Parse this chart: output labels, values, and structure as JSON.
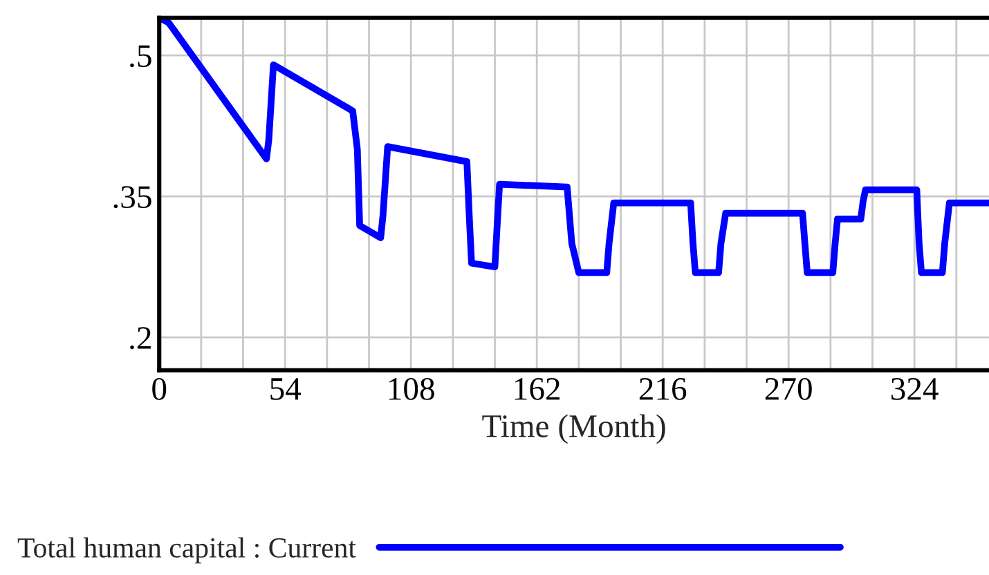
{
  "chart_data": {
    "type": "line",
    "xlabel": "Time (Month)",
    "x": [
      0,
      4,
      46,
      47,
      49,
      83,
      85,
      86,
      95,
      96,
      98,
      132,
      133,
      134,
      144,
      145,
      146,
      175,
      177,
      180,
      192,
      193,
      195,
      228,
      229,
      230,
      240,
      241,
      243,
      276,
      277,
      278,
      289,
      290,
      291,
      301,
      302,
      303,
      325,
      326,
      327,
      336,
      337,
      339,
      356
    ],
    "series": [
      {
        "name": "Total human capital : Current",
        "color": "#0000ff",
        "values": [
          0.54,
          0.535,
          0.39,
          0.41,
          0.49,
          0.441,
          0.4,
          0.319,
          0.306,
          0.33,
          0.403,
          0.387,
          0.33,
          0.279,
          0.275,
          0.32,
          0.363,
          0.36,
          0.3,
          0.269,
          0.269,
          0.3,
          0.343,
          0.343,
          0.3,
          0.269,
          0.269,
          0.3,
          0.332,
          0.332,
          0.3,
          0.269,
          0.269,
          0.3,
          0.326,
          0.326,
          0.345,
          0.357,
          0.357,
          0.3,
          0.269,
          0.269,
          0.3,
          0.343,
          0.343
        ]
      }
    ],
    "xlim": [
      0,
      356
    ],
    "xticks": [
      0,
      {
        "value": 18,
        "label": null
      },
      {
        "value": 36,
        "label": null
      },
      54,
      {
        "value": 72,
        "label": null
      },
      {
        "value": 90,
        "label": null
      },
      108,
      {
        "value": 126,
        "label": null
      },
      {
        "value": 144,
        "label": null
      },
      162,
      {
        "value": 180,
        "label": null
      },
      {
        "value": 198,
        "label": null
      },
      216,
      {
        "value": 234,
        "label": null
      },
      {
        "value": 252,
        "label": null
      },
      270,
      {
        "value": 288,
        "label": null
      },
      {
        "value": 306,
        "label": null
      },
      324,
      {
        "value": 342,
        "label": null
      }
    ],
    "ylim": [
      0.165,
      0.54
    ],
    "yticks": [
      {
        "value": 0.2,
        "label": ".2"
      },
      {
        "value": 0.35,
        "label": ".35"
      },
      {
        "value": 0.5,
        "label": ".5"
      }
    ],
    "grid": true,
    "legend": "bottom left",
    "line_style": "solid",
    "marker": "none"
  }
}
